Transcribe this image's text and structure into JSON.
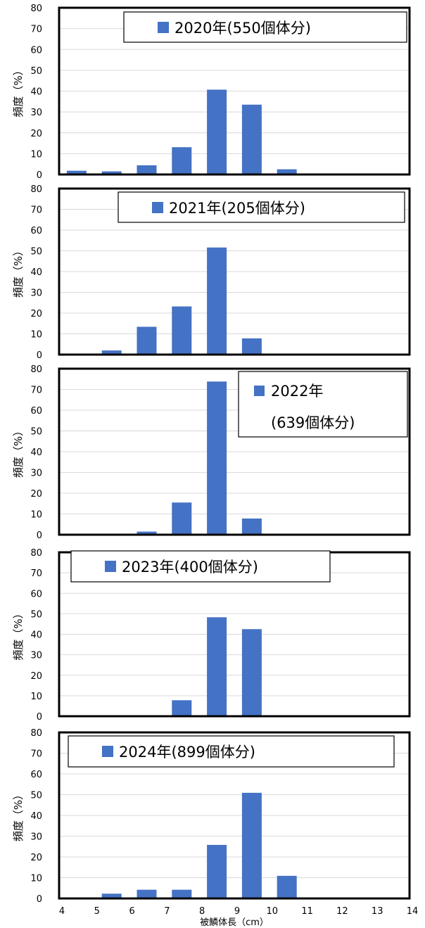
{
  "x_axis": {
    "label": "被鱗体長（cm）",
    "ticks": [
      "4",
      "5",
      "6",
      "7",
      "8",
      "9",
      "10",
      "11",
      "12",
      "13",
      "14"
    ]
  },
  "chart_data": [
    {
      "type": "bar",
      "legend": "2020年(550個体分)",
      "ylabel": "頻度（%）",
      "ylim": [
        0,
        80
      ],
      "yticks": [
        0,
        10,
        20,
        30,
        40,
        50,
        60,
        70,
        80
      ],
      "categories": [
        "4-5",
        "5-6",
        "6-7",
        "7-8",
        "8-9",
        "9-10",
        "10-11",
        "11-12",
        "12-13",
        "13-14"
      ],
      "values": [
        1.8,
        1.5,
        4.4,
        13.1,
        40.7,
        33.5,
        2.5,
        0,
        0,
        0
      ],
      "color": "#4472C4",
      "grid": true
    },
    {
      "type": "bar",
      "legend": "2021年(205個体分)",
      "ylabel": "頻度（%）",
      "ylim": [
        0,
        80
      ],
      "yticks": [
        0,
        10,
        20,
        30,
        40,
        50,
        60,
        70,
        80
      ],
      "categories": [
        "4-5",
        "5-6",
        "6-7",
        "7-8",
        "8-9",
        "9-10",
        "10-11",
        "11-12",
        "12-13",
        "13-14"
      ],
      "values": [
        0,
        2.0,
        13.4,
        23.2,
        51.6,
        7.8,
        0.3,
        0,
        0,
        0
      ],
      "color": "#4472C4",
      "grid": true
    },
    {
      "type": "bar",
      "legend_lines": [
        "2022年",
        "(639個体分)"
      ],
      "ylabel": "頻度（%）",
      "ylim": [
        0,
        80
      ],
      "yticks": [
        0,
        10,
        20,
        30,
        40,
        50,
        60,
        70,
        80
      ],
      "categories": [
        "4-5",
        "5-6",
        "6-7",
        "7-8",
        "8-9",
        "9-10",
        "10-11",
        "11-12",
        "12-13",
        "13-14"
      ],
      "values": [
        0,
        0.3,
        1.5,
        15.5,
        73.8,
        7.8,
        0,
        0,
        0,
        0
      ],
      "color": "#4472C4",
      "grid": true
    },
    {
      "type": "bar",
      "legend": "2023年(400個体分)",
      "ylabel": "頻度（%）",
      "ylim": [
        0,
        80
      ],
      "yticks": [
        0,
        10,
        20,
        30,
        40,
        50,
        60,
        70,
        80
      ],
      "categories": [
        "4-5",
        "5-6",
        "6-7",
        "7-8",
        "8-9",
        "9-10",
        "10-11",
        "11-12",
        "12-13",
        "13-14"
      ],
      "values": [
        0,
        0,
        0.5,
        7.8,
        48.3,
        42.5,
        0,
        0,
        0,
        0
      ],
      "color": "#4472C4",
      "grid": true
    },
    {
      "type": "bar",
      "legend": "2024年(899個体分)",
      "ylabel": "頻度（%）",
      "ylim": [
        0,
        80
      ],
      "yticks": [
        0,
        10,
        20,
        30,
        40,
        50,
        60,
        70,
        80
      ],
      "categories": [
        "4-5",
        "5-6",
        "6-7",
        "7-8",
        "8-9",
        "9-10",
        "10-11",
        "11-12",
        "12-13",
        "13-14"
      ],
      "values": [
        0.3,
        2.3,
        4.2,
        4.2,
        25.8,
        50.9,
        10.9,
        0,
        0,
        0
      ],
      "color": "#4472C4",
      "grid": true
    }
  ]
}
